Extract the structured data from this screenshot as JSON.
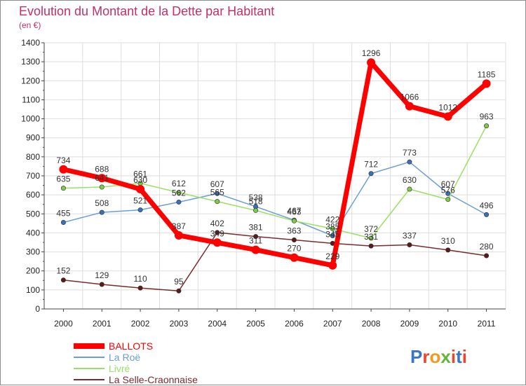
{
  "chart_data": {
    "type": "line",
    "title": "Evolution du Montant de la Dette par Habitant",
    "subtitle": "(en €)",
    "xlabel": "",
    "ylabel": "",
    "x": [
      "2000",
      "2001",
      "2002",
      "2003",
      "2004",
      "2005",
      "2006",
      "2007",
      "2008",
      "2009",
      "2010",
      "2011"
    ],
    "ylim": [
      0,
      1400
    ],
    "yticks": [
      0,
      100,
      200,
      300,
      400,
      500,
      600,
      700,
      800,
      900,
      1000,
      1100,
      1200,
      1300,
      1400
    ],
    "grid": true,
    "legend_position": "bottom-left",
    "series": [
      {
        "name": "BALLOTS",
        "color": "#ff0000",
        "values": [
          734,
          688,
          630,
          387,
          349,
          311,
          270,
          229,
          1296,
          1066,
          1012,
          1185
        ]
      },
      {
        "name": "La Roë",
        "color": "#6b9ed6",
        "values": [
          455,
          508,
          521,
          562,
          607,
          538,
          467,
          385,
          712,
          773,
          607,
          496
        ]
      },
      {
        "name": "Livré",
        "color": "#99e066",
        "values": [
          635,
          641,
          661,
          612,
          565,
          518,
          463,
          422,
          372,
          630,
          576,
          963
        ]
      },
      {
        "name": "La Selle-Craonnaise",
        "color": "#7a2b2b",
        "values": [
          152,
          129,
          110,
          95,
          402,
          381,
          363,
          345,
          331,
          337,
          310,
          280
        ]
      }
    ]
  },
  "logo": {
    "text": "Proxiti",
    "colors": [
      "#3a76c4",
      "#e5482c",
      "#f09a1f",
      "#62b63a",
      "#e5482c",
      "#3a76c4",
      "#e5482c"
    ]
  }
}
